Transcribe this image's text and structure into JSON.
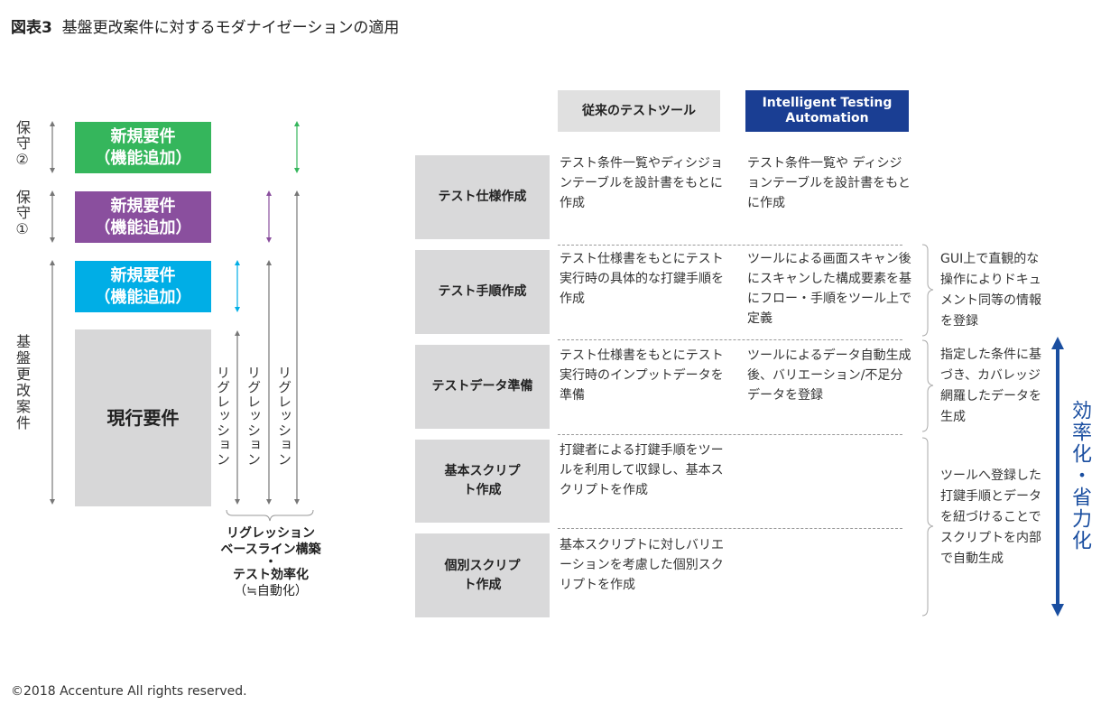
{
  "title": {
    "prefix": "図表3",
    "text": "基盤更改案件に対するモダナイゼーションの適用"
  },
  "left": {
    "labels": {
      "hoshu2": "保守②",
      "hoshu1": "保守①",
      "kiban": "基盤更改案件"
    },
    "boxes": [
      {
        "text": "新規要件\n（機能追加）",
        "color": "#35b65c"
      },
      {
        "text": "新規要件\n（機能追加）",
        "color": "#8a4f9e"
      },
      {
        "text": "新規要件\n（機能追加）",
        "color": "#00aee6"
      },
      {
        "text": "現行要件",
        "color": "#d7d7d8"
      }
    ],
    "regression_label": "リグレッション",
    "summary": [
      "リグレッション",
      "ベースライン構築",
      "・",
      "テスト効率化",
      "（≒自動化）"
    ]
  },
  "table": {
    "headers": [
      {
        "text": "従来のテストツール",
        "color": "#e0e0e0"
      },
      {
        "text": "Intelligent Testing Automation",
        "color": "#1a3e93"
      }
    ],
    "rows": [
      {
        "label": "テスト仕様作成",
        "traditional": "テスト条件一覧やディシジョンテーブルを設計書をもとに作成",
        "ita": "テスト条件一覧や ディシジョンテーブルを設計書をもとに作成"
      },
      {
        "label": "テスト手順作成",
        "traditional": "テスト仕様書をもとにテスト実行時の具体的な打鍵手順を作成",
        "ita": "ツールによる画面スキャン後にスキャンした構成要素を基にフロー・手順をツール上で定義"
      },
      {
        "label": "テストデータ準備",
        "traditional": "テスト仕様書をもとにテスト実行時のインプットデータを準備",
        "ita": "ツールによるデータ自動生成後、バリエーション/不足分データを登録"
      },
      {
        "label": "基本スクリプト作成",
        "traditional": "打鍵者による打鍵手順をツールを利用して収録し、基本スクリプトを作成",
        "ita": ""
      },
      {
        "label": "個別スクリプト作成",
        "traditional": "基本スクリプトに対しバリエーションを考慮した個別スクリプトを作成",
        "ita": ""
      }
    ],
    "notes": [
      "GUI上で直観的な操作によりドキュメント同等の情報を登録",
      "指定した条件に基づき、カバレッジ網羅したデータを生成",
      "ツールへ登録した打鍵手順とデータを紐づけることでスクリプトを内部で自動生成"
    ],
    "efficiency_label": "効率化・省力化",
    "accent": "#1a4ea0"
  },
  "footer": "©2018 Accenture All rights reserved."
}
